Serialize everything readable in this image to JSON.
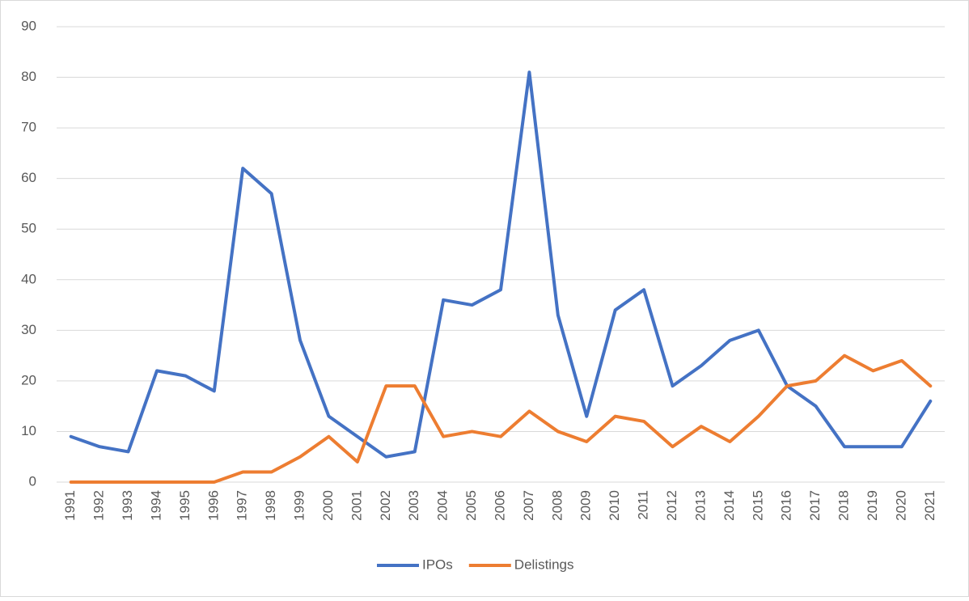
{
  "chart_data": {
    "type": "line",
    "categories": [
      "1991",
      "1992",
      "1993",
      "1994",
      "1995",
      "1996",
      "1997",
      "1998",
      "1999",
      "2000",
      "2001",
      "2002",
      "2003",
      "2004",
      "2005",
      "2006",
      "2007",
      "2008",
      "2009",
      "2010",
      "2011",
      "2012",
      "2013",
      "2014",
      "2015",
      "2016",
      "2017",
      "2018",
      "2019",
      "2020",
      "2021"
    ],
    "series": [
      {
        "name": "IPOs",
        "color": "#4472c4",
        "values": [
          9,
          7,
          6,
          22,
          21,
          18,
          62,
          57,
          28,
          13,
          9,
          5,
          6,
          36,
          35,
          38,
          81,
          33,
          13,
          34,
          38,
          19,
          23,
          28,
          30,
          19,
          15,
          7,
          7,
          7,
          16
        ]
      },
      {
        "name": "Delistings",
        "color": "#ed7d31",
        "values": [
          0,
          0,
          0,
          0,
          0,
          0,
          2,
          2,
          5,
          9,
          4,
          19,
          19,
          9,
          10,
          9,
          14,
          10,
          8,
          13,
          12,
          7,
          11,
          8,
          13,
          19,
          20,
          25,
          22,
          24,
          19
        ]
      }
    ],
    "ylim": [
      0,
      90
    ],
    "yticks": [
      0,
      10,
      20,
      30,
      40,
      50,
      60,
      70,
      80,
      90
    ],
    "grid": true,
    "legend": "bottom"
  }
}
